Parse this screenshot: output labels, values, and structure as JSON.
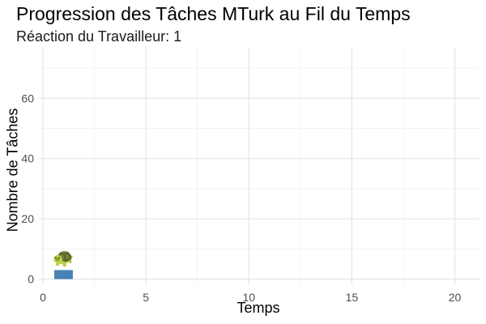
{
  "chart_data": {
    "type": "bar",
    "title": "Progression des Tâches MTurk au Fil du Temps",
    "subtitle": "Réaction du Travailleur: 1",
    "xlabel": "Temps",
    "ylabel": "Nombre de Tâches",
    "xlim": [
      -0.2,
      21.2
    ],
    "ylim": [
      -2,
      77
    ],
    "x_ticks": [
      0,
      5,
      10,
      15,
      20
    ],
    "x_minor_ticks": [
      2.5,
      7.5,
      12.5,
      17.5
    ],
    "y_ticks": [
      0,
      20,
      40,
      60
    ],
    "y_minor_ticks": [
      10,
      30,
      50,
      70
    ],
    "grid": true,
    "bar_color": "#4682B4",
    "bars": [
      {
        "x": 1,
        "y": 3,
        "label": "🐢"
      }
    ]
  }
}
